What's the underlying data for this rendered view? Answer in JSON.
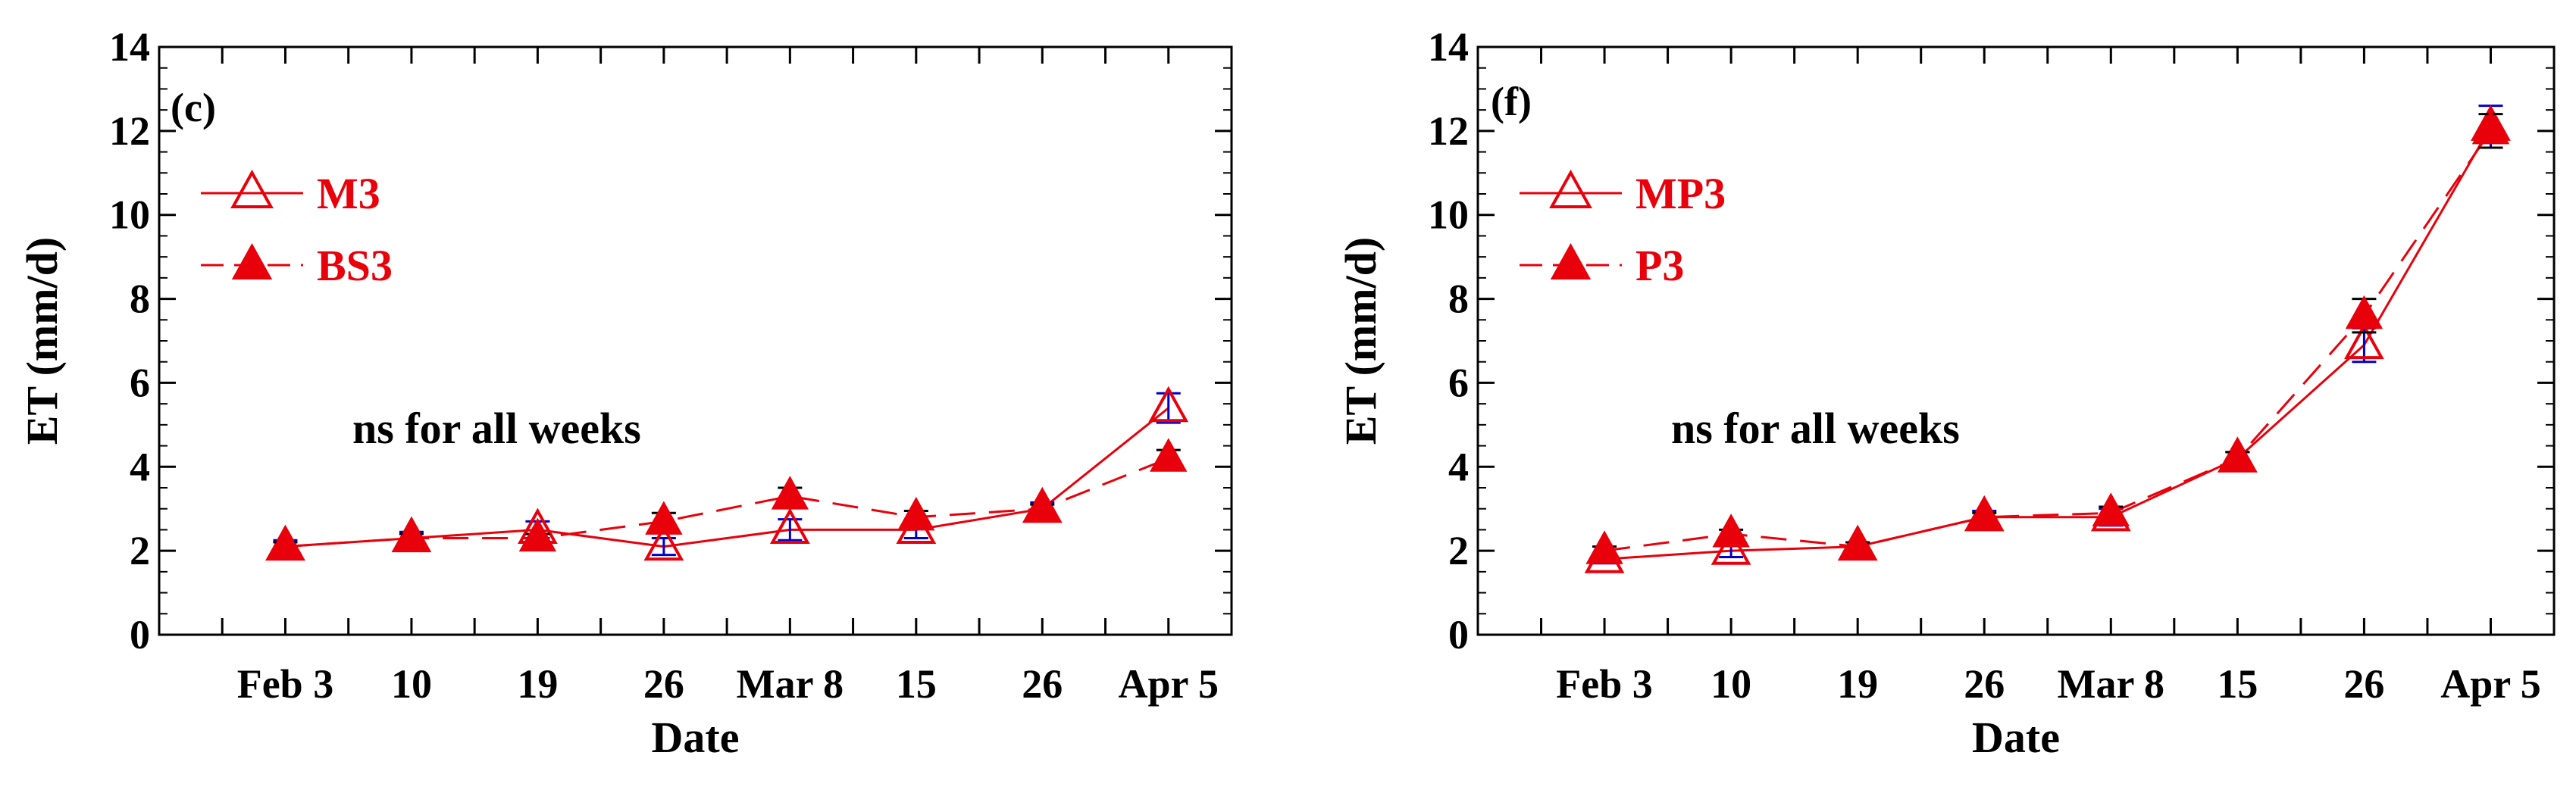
{
  "chart_data": [
    {
      "type": "line",
      "panel_label": "(c)",
      "xlabel": "Date",
      "ylabel": "ET (mm/d)",
      "ylim": [
        0,
        14
      ],
      "yticks": [
        "0",
        "2",
        "4",
        "6",
        "8",
        "10",
        "12",
        "14"
      ],
      "xlim": [
        -1,
        16
      ],
      "categories": [
        "Feb 3",
        "10",
        "19",
        "26",
        "Mar 8",
        "15",
        "26",
        "Apr 5"
      ],
      "x": [
        1,
        3,
        5,
        7,
        9,
        11,
        13,
        15
      ],
      "annotation": "ns for all weeks",
      "legend_position": "top-left",
      "series": [
        {
          "name": "M3",
          "marker": "open-triangle",
          "line": "solid",
          "values": [
            2.1,
            2.3,
            2.5,
            2.1,
            2.5,
            2.5,
            3.0,
            5.4
          ],
          "errors": [
            0.15,
            0.15,
            0.2,
            0.2,
            0.25,
            0.2,
            0.15,
            0.35
          ]
        },
        {
          "name": "BS3",
          "marker": "filled-triangle",
          "line": "dashed",
          "values": [
            2.1,
            2.3,
            2.3,
            2.7,
            3.3,
            2.8,
            3.0,
            4.2
          ],
          "errors": [
            0.1,
            0.1,
            0.1,
            0.2,
            0.2,
            0.15,
            0.1,
            0.2
          ]
        }
      ]
    },
    {
      "type": "line",
      "panel_label": "(f)",
      "xlabel": "Date",
      "ylabel": "ET (mm/d)",
      "ylim": [
        0,
        14
      ],
      "yticks": [
        "0",
        "2",
        "4",
        "6",
        "8",
        "10",
        "12",
        "14"
      ],
      "xlim": [
        -1,
        16
      ],
      "categories": [
        "Feb 3",
        "10",
        "19",
        "26",
        "Mar 8",
        "15",
        "26",
        "Apr 5"
      ],
      "x": [
        1,
        3,
        5,
        7,
        9,
        11,
        13,
        15
      ],
      "annotation": "ns for all weeks",
      "legend_position": "top-left",
      "series": [
        {
          "name": "MP3",
          "marker": "open-triangle",
          "line": "solid",
          "values": [
            1.8,
            2.0,
            2.1,
            2.8,
            2.8,
            4.2,
            6.9,
            12.1
          ],
          "errors": [
            0.1,
            0.15,
            0.1,
            0.15,
            0.2,
            0.15,
            0.4,
            0.5
          ]
        },
        {
          "name": "P3",
          "marker": "filled-triangle",
          "line": "dashed",
          "values": [
            2.0,
            2.4,
            2.1,
            2.8,
            2.9,
            4.2,
            7.6,
            12.0
          ],
          "errors": [
            0.1,
            0.1,
            0.1,
            0.1,
            0.15,
            0.15,
            0.4,
            0.4
          ]
        }
      ]
    }
  ],
  "colors": {
    "series": "#e8000b",
    "error_bar": "#0000cc",
    "axis": "#000000"
  }
}
